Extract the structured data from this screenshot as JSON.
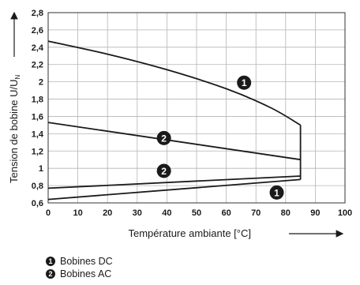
{
  "chart_data": {
    "type": "line",
    "xlabel": "Température ambiante [°C]",
    "ylabel": "Tension de bobine U/U",
    "ylabel_sub": "N",
    "xlim": [
      0,
      100
    ],
    "ylim": [
      0.6,
      2.8
    ],
    "x_ticks": [
      0,
      10,
      20,
      30,
      40,
      50,
      60,
      70,
      80,
      90,
      100
    ],
    "y_ticks": [
      0.6,
      0.8,
      1,
      1.2,
      1.4,
      1.6,
      1.8,
      2,
      2.2,
      2.4,
      2.6,
      2.8
    ],
    "y_tick_labels": [
      "0,6",
      "0,8",
      "1",
      "1,2",
      "1,4",
      "1,6",
      "1,8",
      "2",
      "2,2",
      "2,4",
      "2,6",
      "2,8"
    ],
    "x_tick_labels": [
      "0",
      "10",
      "20",
      "30",
      "40",
      "50",
      "60",
      "70",
      "80",
      "90",
      "100"
    ],
    "grid": true,
    "series": [
      {
        "name": "Bobines DC",
        "marker": "1",
        "upper": [
          [
            0,
            2.47
          ],
          [
            20,
            2.32
          ],
          [
            40,
            2.14
          ],
          [
            60,
            1.92
          ],
          [
            75,
            1.7
          ],
          [
            85,
            1.5
          ]
        ],
        "lower": [
          [
            0,
            0.64
          ],
          [
            85,
            0.87
          ]
        ],
        "closing_edge": [
          [
            85,
            0.87
          ],
          [
            85,
            1.5
          ]
        ]
      },
      {
        "name": "Bobines AC",
        "marker": "2",
        "upper": [
          [
            0,
            1.53
          ],
          [
            85,
            1.1
          ]
        ],
        "lower": [
          [
            0,
            0.77
          ],
          [
            85,
            0.91
          ]
        ]
      }
    ],
    "annotations": [
      {
        "label": "1",
        "x": 66,
        "y": 1.99
      },
      {
        "label": "2",
        "x": 39,
        "y": 1.35
      },
      {
        "label": "2",
        "x": 39,
        "y": 0.97
      },
      {
        "label": "1",
        "x": 77,
        "y": 0.72
      }
    ],
    "colors": {
      "line": "#1a1a1a",
      "grid": "#b5b5b5",
      "marker_fill": "#1a1a1a"
    }
  },
  "legend": {
    "items": [
      {
        "badge": "1",
        "label": "Bobines DC"
      },
      {
        "badge": "2",
        "label": "Bobines AC"
      }
    ]
  }
}
